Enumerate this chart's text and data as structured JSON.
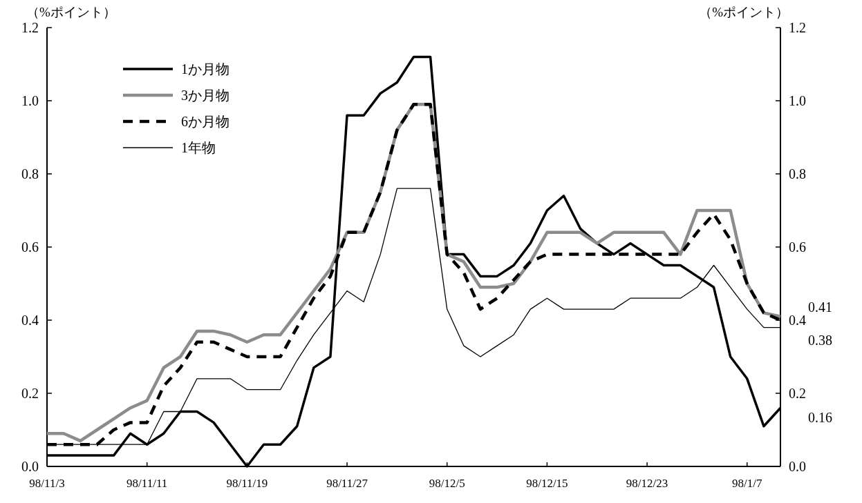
{
  "chart_data": {
    "type": "line",
    "ylabel": "（%ポイント）",
    "y2label": "（%ポイント）",
    "categories": [
      "98/11/3",
      null,
      null,
      null,
      null,
      null,
      "98/11/11",
      null,
      null,
      null,
      null,
      null,
      "98/11/19",
      null,
      null,
      null,
      null,
      null,
      "98/11/27",
      null,
      null,
      null,
      null,
      null,
      "98/12/5",
      null,
      null,
      null,
      null,
      null,
      "98/12/15",
      null,
      null,
      null,
      null,
      null,
      "98/12/23",
      null,
      null,
      null,
      null,
      null,
      "98/1/7",
      null,
      null
    ],
    "ylim": [
      0,
      1.2
    ],
    "yticks": [
      {
        "value": 0,
        "label": "0.0"
      },
      0.2,
      0.4,
      0.6,
      0.8,
      {
        "value": 1,
        "label": "1.0"
      },
      1.2
    ],
    "y2lim": [
      0,
      1.2
    ],
    "y2ticks": [
      {
        "value": 0,
        "label": "0.0"
      },
      0.2,
      0.4,
      0.6,
      0.8,
      {
        "value": 1,
        "label": "1.0"
      },
      1.2
    ],
    "grid": false,
    "legend": "top left",
    "marker": "none",
    "series": [
      {
        "name": "1か月物",
        "color": "#000000",
        "line_style": "solid",
        "values": [
          0.03,
          0.03,
          0.03,
          0.03,
          0.03,
          0.09,
          0.06,
          0.09,
          0.15,
          0.15,
          0.12,
          0.06,
          0.0,
          0.06,
          0.06,
          0.11,
          0.27,
          0.3,
          0.96,
          0.96,
          1.02,
          1.05,
          1.12,
          1.12,
          0.58,
          0.58,
          0.52,
          0.52,
          0.55,
          0.61,
          0.7,
          0.74,
          0.65,
          0.61,
          0.58,
          0.61,
          0.58,
          0.55,
          0.55,
          0.52,
          0.49,
          0.3,
          0.24,
          0.11,
          0.16
        ]
      },
      {
        "name": "3か月物",
        "color": "#8c8c8c",
        "line_style": "solid",
        "values": [
          0.09,
          0.09,
          0.07,
          0.1,
          0.13,
          0.16,
          0.18,
          0.27,
          0.3,
          0.37,
          0.37,
          0.36,
          0.34,
          0.36,
          0.36,
          0.42,
          0.48,
          0.54,
          0.64,
          0.64,
          0.75,
          0.92,
          0.99,
          0.99,
          0.58,
          0.56,
          0.49,
          0.49,
          0.5,
          0.56,
          0.64,
          0.64,
          0.64,
          0.61,
          0.64,
          0.64,
          0.64,
          0.64,
          0.58,
          0.7,
          0.7,
          0.7,
          0.5,
          0.42,
          0.41
        ]
      },
      {
        "name": "6か月物",
        "color": "#000000",
        "line_style": "dashed",
        "values": [
          0.06,
          0.06,
          0.06,
          0.06,
          0.1,
          0.12,
          0.12,
          0.22,
          0.27,
          0.34,
          0.34,
          0.32,
          0.3,
          0.3,
          0.3,
          0.38,
          0.46,
          0.52,
          0.64,
          0.64,
          0.75,
          0.92,
          0.99,
          0.99,
          0.58,
          0.53,
          0.43,
          0.46,
          0.51,
          0.56,
          0.58,
          0.58,
          0.58,
          0.58,
          0.58,
          0.58,
          0.58,
          0.58,
          0.58,
          0.64,
          0.69,
          0.62,
          0.5,
          0.42,
          0.4
        ]
      },
      {
        "name": "1年物",
        "color": "#000000",
        "line_style": "solid",
        "values": [
          0.06,
          0.06,
          0.06,
          0.06,
          0.06,
          0.06,
          0.06,
          0.15,
          0.15,
          0.24,
          0.24,
          0.24,
          0.21,
          0.21,
          0.21,
          0.29,
          0.36,
          0.42,
          0.48,
          0.45,
          0.58,
          0.76,
          0.76,
          0.76,
          0.43,
          0.33,
          0.3,
          0.33,
          0.36,
          0.43,
          0.46,
          0.43,
          0.43,
          0.43,
          0.43,
          0.46,
          0.46,
          0.46,
          0.46,
          0.49,
          0.55,
          0.49,
          0.43,
          0.38,
          0.38
        ]
      }
    ],
    "annotations": [
      "0.41",
      "0.38",
      "0.16"
    ]
  }
}
